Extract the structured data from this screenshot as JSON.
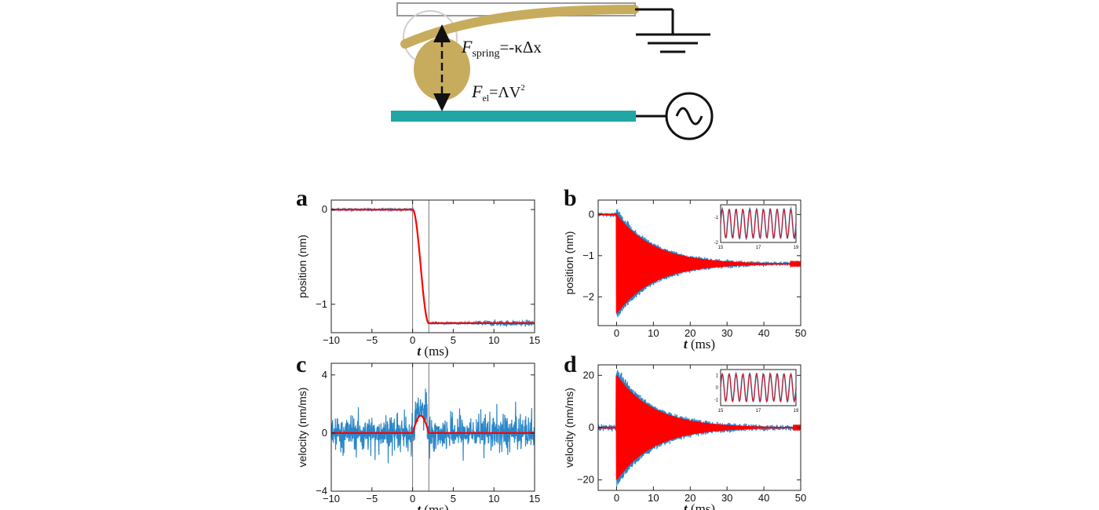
{
  "colors": {
    "measured": "#2a86c8",
    "fit": "#ff0000",
    "cantilever": "#c8ac5e",
    "electrode": "#21a6a6",
    "frame": "#222222"
  },
  "schematic": {
    "spring_force": {
      "symbol": "F",
      "subscript": "spring",
      "expr": "=-κΔx"
    },
    "electric_force": {
      "symbol": "F",
      "subscript": "el",
      "expr_main": "=ΛV",
      "expr_sup": "2"
    },
    "icons": [
      "ground-symbol-icon",
      "ac-voltage-source-icon",
      "double-arrow-icon"
    ]
  },
  "chart_data": [
    {
      "panel": "a",
      "type": "line",
      "xlabel_var": "t",
      "xlabel_unit": " (ms)",
      "ylabel": "position (nm)",
      "xlim": [
        -10,
        15
      ],
      "ylim": [
        -1.3,
        0.1
      ],
      "xticks": [
        -10,
        -5,
        0,
        5,
        10,
        15
      ],
      "yticks": [
        0,
        -1
      ],
      "ytick_labels": [
        "0",
        "−1"
      ],
      "xtick_labels": [
        "−10",
        "−5",
        "0",
        "5",
        "10",
        "15"
      ],
      "markers_x": [
        0,
        2
      ],
      "series": [
        {
          "kind": "measured",
          "model": "step",
          "before": 0,
          "after": -1.2,
          "t0": 0,
          "t1": 2
        },
        {
          "kind": "fit",
          "model": "step",
          "before": 0,
          "after": -1.2,
          "t0": 0,
          "t1": 2
        }
      ]
    },
    {
      "panel": "b",
      "type": "line",
      "xlabel_var": "t",
      "xlabel_unit": " (ms)",
      "ylabel": "position (nm)",
      "xlim": [
        -5,
        50
      ],
      "ylim": [
        -2.7,
        0.35
      ],
      "xticks": [
        0,
        10,
        20,
        30,
        40,
        50
      ],
      "yticks": [
        0,
        -1,
        -2
      ],
      "ytick_labels": [
        "0",
        "−1",
        "−2"
      ],
      "xtick_labels": [
        "0",
        "10",
        "20",
        "30",
        "40",
        "50"
      ],
      "series": [
        {
          "kind": "measured",
          "model": "ringdown",
          "before": 0,
          "center": -1.2,
          "amplitude0": 1.3,
          "tau_ms": 10
        },
        {
          "kind": "fit",
          "model": "ringdown",
          "before": 0,
          "center": -1.2,
          "amplitude0": 1.2,
          "tau_ms": 10
        }
      ],
      "inset": {
        "xlim": [
          15,
          19
        ],
        "ylim": [
          -2,
          -0.5
        ],
        "xticks": [
          15,
          17,
          19
        ],
        "yticks": [
          -1,
          -2
        ],
        "xtick_labels": [
          "15",
          "17",
          "19"
        ],
        "ytick_labels": [
          "-1",
          "-2"
        ],
        "cycles": 11
      }
    },
    {
      "panel": "c",
      "type": "line",
      "xlabel_var": "t",
      "xlabel_unit": " (ms)",
      "ylabel": "velocity (nm/ms)",
      "xlim": [
        -10,
        15
      ],
      "ylim": [
        -4,
        4.8
      ],
      "xticks": [
        -10,
        -5,
        0,
        5,
        10,
        15
      ],
      "yticks": [
        4,
        0,
        -4
      ],
      "ytick_labels": [
        "4",
        "0",
        "−4"
      ],
      "xtick_labels": [
        "−10",
        "−5",
        "0",
        "5",
        "10",
        "15"
      ],
      "markers_x": [
        0,
        2
      ],
      "series": [
        {
          "kind": "measured",
          "model": "noise",
          "rms": 1.1
        },
        {
          "kind": "fit",
          "model": "pulse",
          "peak": 1.2,
          "t0": 0,
          "t1": 2
        }
      ]
    },
    {
      "panel": "d",
      "type": "line",
      "xlabel_var": "t",
      "xlabel_unit": " (ms)",
      "ylabel": "velocity (nm/ms)",
      "xlim": [
        -5,
        50
      ],
      "ylim": [
        -24,
        24
      ],
      "xticks": [
        0,
        10,
        20,
        30,
        40,
        50
      ],
      "yticks": [
        20,
        0,
        -20
      ],
      "ytick_labels": [
        "20",
        "0",
        "−20"
      ],
      "xtick_labels": [
        "0",
        "10",
        "20",
        "30",
        "40",
        "50"
      ],
      "series": [
        {
          "kind": "measured",
          "model": "ringdown",
          "before": 0,
          "center": 0,
          "amplitude0": 22,
          "tau_ms": 10
        },
        {
          "kind": "fit",
          "model": "ringdown",
          "before": 0,
          "center": 0,
          "amplitude0": 20,
          "tau_ms": 10
        }
      ],
      "inset": {
        "xlim": [
          15,
          19
        ],
        "ylim": [
          -1.5,
          1.5
        ],
        "xticks": [
          15,
          17,
          19
        ],
        "yticks": [
          1,
          0,
          -1
        ],
        "xtick_labels": [
          "15",
          "17",
          "19"
        ],
        "ytick_labels": [
          "1",
          "0",
          "-1"
        ],
        "cycles": 11
      }
    }
  ]
}
